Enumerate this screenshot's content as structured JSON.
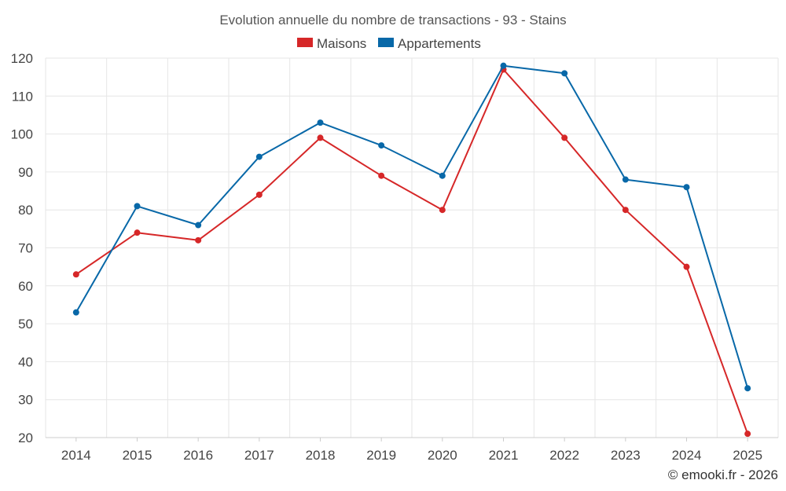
{
  "chart_data": {
    "type": "line",
    "title": "Evolution annuelle du nombre de transactions - 93 - Stains",
    "categories": [
      "2014",
      "2015",
      "2016",
      "2017",
      "2018",
      "2019",
      "2020",
      "2021",
      "2022",
      "2023",
      "2024",
      "2025"
    ],
    "series": [
      {
        "name": "Maisons",
        "color": "#d62728",
        "values": [
          63,
          74,
          72,
          84,
          99,
          89,
          80,
          117,
          99,
          80,
          65,
          21
        ]
      },
      {
        "name": "Appartements",
        "color": "#0868a8",
        "values": [
          53,
          81,
          76,
          94,
          103,
          97,
          89,
          118,
          116,
          88,
          86,
          33
        ]
      }
    ],
    "ylim": [
      20,
      120
    ],
    "yticks": [
      20,
      30,
      40,
      50,
      60,
      70,
      80,
      90,
      100,
      110,
      120
    ],
    "xlabel": "",
    "ylabel": "",
    "grid": true,
    "legend_position": "top-center"
  },
  "credit": "© emooki.fr - 2026"
}
